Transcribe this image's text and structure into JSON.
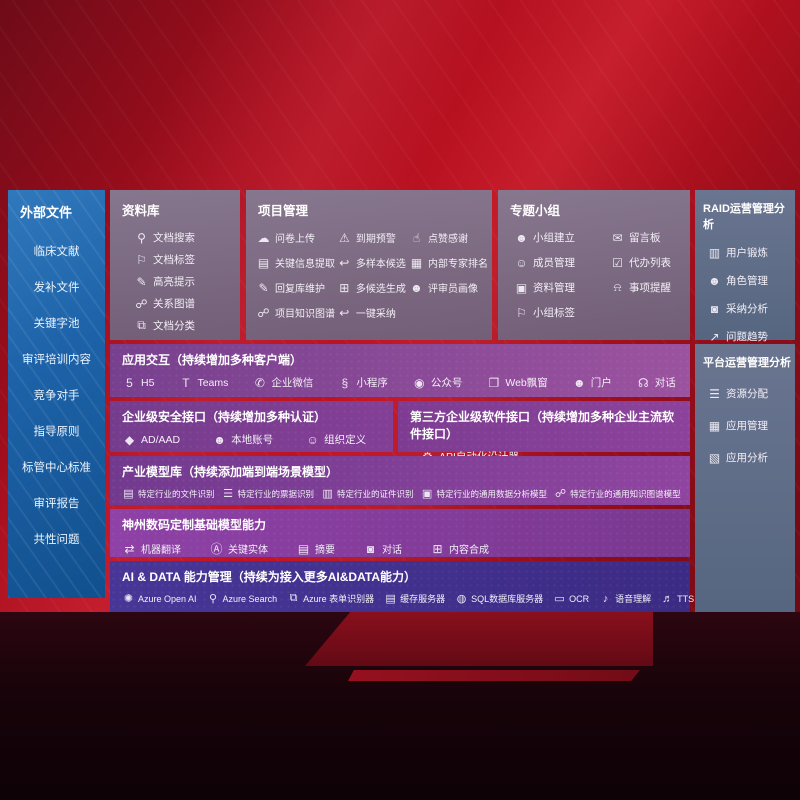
{
  "colors": {
    "background_red": "#c31322",
    "sidebar_blue": "#1d62a8",
    "graybox": "#7a7088",
    "rightbox_bluegray": "#5f6e86",
    "row_purple": "#8a4499",
    "aidata_indigo": "#42318f",
    "text": "#ffffff"
  },
  "sidebar": {
    "title": "外部文件",
    "items": [
      "临床文献",
      "发补文件",
      "关键字池",
      "审评培训内容",
      "竞争对手",
      "指导原则",
      "标管中心标准",
      "审评报告",
      "共性问题"
    ]
  },
  "library": {
    "title": "资料库",
    "items": [
      {
        "label": "文档搜索",
        "glyph": "⚲",
        "icon_name": "doc-search-icon"
      },
      {
        "label": "文档标签",
        "glyph": "⚐",
        "icon_name": "doc-tag-icon"
      },
      {
        "label": "高亮提示",
        "glyph": "✎",
        "icon_name": "highlight-icon"
      },
      {
        "label": "关系图谱",
        "glyph": "☍",
        "icon_name": "relation-graph-icon"
      },
      {
        "label": "文档分类",
        "glyph": "⧉",
        "icon_name": "doc-classify-icon"
      }
    ]
  },
  "project": {
    "title": "项目管理",
    "items": [
      {
        "label": "问卷上传",
        "glyph": "☁",
        "icon_name": "questionnaire-upload-icon"
      },
      {
        "label": "到期预警",
        "glyph": "⚠",
        "icon_name": "due-warning-icon"
      },
      {
        "label": "点赞感谢",
        "glyph": "☝",
        "icon_name": "thumbs-up-icon"
      },
      {
        "label": "关键信息提取",
        "glyph": "▤",
        "icon_name": "key-info-extract-icon"
      },
      {
        "label": "多样本候选",
        "glyph": "↩",
        "icon_name": "multi-sample-icon"
      },
      {
        "label": "内部专家排名",
        "glyph": "▦",
        "icon_name": "expert-ranking-icon"
      },
      {
        "label": "回复库维护",
        "glyph": "✎",
        "icon_name": "reply-library-icon"
      },
      {
        "label": "多候选生成",
        "glyph": "⊞",
        "icon_name": "multi-candidate-icon"
      },
      {
        "label": "评审员画像",
        "glyph": "☻",
        "icon_name": "reviewer-profile-icon"
      },
      {
        "label": "项目知识图谱",
        "glyph": "☍",
        "icon_name": "project-kg-icon"
      },
      {
        "label": "一键采纳",
        "glyph": "↩",
        "icon_name": "one-key-adopt-icon"
      }
    ]
  },
  "topic": {
    "title": "专题小组",
    "items": [
      {
        "label": "小组建立",
        "glyph": "☻",
        "icon_name": "group-create-icon"
      },
      {
        "label": "留言板",
        "glyph": "✉",
        "icon_name": "bbs-board-icon"
      },
      {
        "label": "成员管理",
        "glyph": "☺",
        "icon_name": "member-manage-icon"
      },
      {
        "label": "代办列表",
        "glyph": "☑",
        "icon_name": "todo-list-icon"
      },
      {
        "label": "资料管理",
        "glyph": "▣",
        "icon_name": "material-manage-icon"
      },
      {
        "label": "事项提醒",
        "glyph": "⍾",
        "icon_name": "reminder-bell-icon"
      },
      {
        "label": "小组标签",
        "glyph": "⚐",
        "icon_name": "group-tag-icon"
      }
    ]
  },
  "raid": {
    "title": "RAID运营管理分析",
    "items": [
      {
        "label": "用户锻炼",
        "glyph": "▥",
        "icon_name": "user-card-icon"
      },
      {
        "label": "角色管理",
        "glyph": "☻",
        "icon_name": "role-manage-icon"
      },
      {
        "label": "采纳分析",
        "glyph": "◙",
        "icon_name": "adoption-analysis-icon"
      },
      {
        "label": "问题趋势",
        "glyph": "↗",
        "icon_name": "issue-trend-icon"
      }
    ]
  },
  "platform": {
    "title": "平台运营管理分析",
    "items": [
      {
        "label": "资源分配",
        "glyph": "☰",
        "icon_name": "resource-allocation-icon"
      },
      {
        "label": "应用管理",
        "glyph": "▦",
        "icon_name": "app-manage-icon"
      },
      {
        "label": "应用分析",
        "glyph": "▧",
        "icon_name": "app-analysis-icon"
      }
    ]
  },
  "interaction": {
    "title": "应用交互（持续增加多种客户端）",
    "items": [
      {
        "label": "H5",
        "glyph": "5",
        "icon_name": "h5-icon"
      },
      {
        "label": "Teams",
        "glyph": "T",
        "icon_name": "teams-icon"
      },
      {
        "label": "企业微信",
        "glyph": "✆",
        "icon_name": "wecom-icon"
      },
      {
        "label": "小程序",
        "glyph": "§",
        "icon_name": "miniprogram-icon"
      },
      {
        "label": "公众号",
        "glyph": "◉",
        "icon_name": "official-account-icon"
      },
      {
        "label": "Web飘窗",
        "glyph": "❐",
        "icon_name": "web-popup-icon"
      },
      {
        "label": "门户",
        "glyph": "☻",
        "icon_name": "portal-icon"
      },
      {
        "label": "对话",
        "glyph": "☊",
        "icon_name": "chat-icon"
      }
    ]
  },
  "security": {
    "title": "企业级安全接口（持续增加多种认证）",
    "items": [
      {
        "label": "AD/AAD",
        "glyph": "◆",
        "icon_name": "ad-aad-icon"
      },
      {
        "label": "本地账号",
        "glyph": "☻",
        "icon_name": "local-account-icon"
      },
      {
        "label": "组织定义",
        "glyph": "☺",
        "icon_name": "org-definition-icon"
      }
    ]
  },
  "thirdparty": {
    "title": "第三方企业级软件接口（持续增加多种企业主流软件接口）",
    "items": [
      {
        "label": "API自动化设计器",
        "glyph": "⚙",
        "icon_name": "api-designer-icon"
      }
    ]
  },
  "models": {
    "title": "产业模型库（持续添加端到端场景模型）",
    "items": [
      {
        "label": "特定行业的文件识别",
        "glyph": "▤",
        "icon_name": "file-recognition-icon"
      },
      {
        "label": "特定行业的票据识别",
        "glyph": "☰",
        "icon_name": "invoice-recognition-icon"
      },
      {
        "label": "特定行业的证件识别",
        "glyph": "▥",
        "icon_name": "certificate-recognition-icon"
      },
      {
        "label": "特定行业的通用数据分析模型",
        "glyph": "▣",
        "icon_name": "data-analysis-model-icon"
      },
      {
        "label": "特定行业的通用知识图谱模型",
        "glyph": "☍",
        "icon_name": "kg-model-icon"
      }
    ]
  },
  "foundation": {
    "title": "神州数码定制基础模型能力",
    "items": [
      {
        "label": "机器翻译",
        "glyph": "⇄",
        "icon_name": "machine-translation-icon"
      },
      {
        "label": "关键实体",
        "glyph": "Ⓐ",
        "icon_name": "key-entity-icon"
      },
      {
        "label": "摘要",
        "glyph": "▤",
        "icon_name": "summary-icon"
      },
      {
        "label": "对话",
        "glyph": "◙",
        "icon_name": "dialog-icon"
      },
      {
        "label": "内容合成",
        "glyph": "⊞",
        "icon_name": "content-synthesis-icon"
      }
    ]
  },
  "aidata": {
    "title": "AI & DATA 能力管理（持续为接入更多AI&DATA能力）",
    "items": [
      {
        "label": "Azure Open AI",
        "glyph": "✺",
        "icon_name": "azure-openai-icon"
      },
      {
        "label": "Azure Search",
        "glyph": "⚲",
        "icon_name": "azure-search-icon"
      },
      {
        "label": "Azure 表单识别器",
        "glyph": "⧉",
        "icon_name": "form-recognizer-icon"
      },
      {
        "label": "缓存服务器",
        "glyph": "▤",
        "icon_name": "cache-server-icon"
      },
      {
        "label": "SQL数据库服务器",
        "glyph": "◍",
        "icon_name": "sql-server-icon"
      },
      {
        "label": "OCR",
        "glyph": "▭",
        "icon_name": "ocr-icon"
      },
      {
        "label": "语音理解",
        "glyph": "♪",
        "icon_name": "speech-understanding-icon"
      },
      {
        "label": "TTS",
        "glyph": "♬",
        "icon_name": "tts-icon"
      }
    ]
  }
}
